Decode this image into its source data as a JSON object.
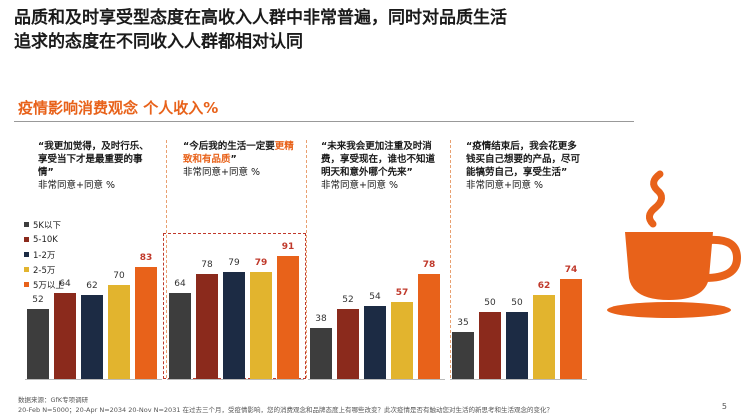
{
  "title": {
    "line1": "品质和及时享受型态度在高收入人群中非常普遍，同时对品质生活",
    "line2": "追求的态度在不同收入人群都相对认同"
  },
  "subtitle": "疫情影响消费观念 个人收入%",
  "panels": [
    {
      "q": "“我更加觉得，及时行乐、享受当下才是最重要的事情”",
      "sub": "非常同意+同意 %"
    },
    {
      "q_pre": "“今后我的生活一定要",
      "q_hl": "更精致和有品质",
      "q_post": "”",
      "sub": "非常同意+同意 %"
    },
    {
      "q": "“未来我会更加注重及时消费，享受现在，谁也不知道明天和意外哪个先来”",
      "sub": "非常同意+同意 %"
    },
    {
      "q": "“疫情结束后，我会花更多钱买自己想要的产品，尽可能犒劳自己，享受生活”",
      "sub": "非常同意+同意 %"
    }
  ],
  "footer": {
    "source": "数据来源：GfK专项调研",
    "samples": "20-Feb N=5000；20-Apr N=2034     20-Nov N=2031 在过去三个月，受疫情影响，您的消费观念和品牌态度上有哪些改变？此次疫情是否有触动您对生活的新思考和生活观念的变化？",
    "page": "5"
  },
  "colors": {
    "accent": "#e8621a",
    "series": [
      "#3d3d3d",
      "#8b2a1c",
      "#1c2b44",
      "#e2b42e",
      "#e8621a"
    ]
  },
  "chart_data": {
    "type": "bar",
    "ylim": [
      0,
      100
    ],
    "categories": [
      "及时行乐",
      "品质生活",
      "及时消费",
      "犒劳自己"
    ],
    "series": [
      {
        "name": "5K以下",
        "values": [
          52,
          64,
          38,
          35
        ]
      },
      {
        "name": "5-10K",
        "values": [
          64,
          78,
          52,
          50
        ]
      },
      {
        "name": "1-2万",
        "values": [
          62,
          79,
          54,
          50
        ]
      },
      {
        "name": "2-5万",
        "values": [
          70,
          79,
          57,
          62
        ]
      },
      {
        "name": "5万以上",
        "values": [
          83,
          91,
          78,
          74
        ]
      }
    ],
    "legend": "left"
  }
}
